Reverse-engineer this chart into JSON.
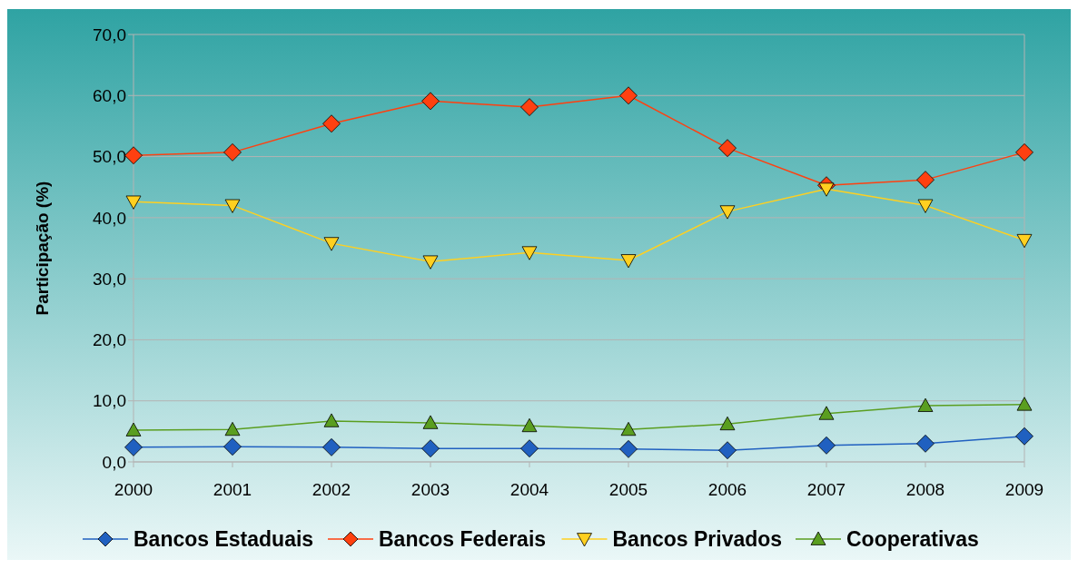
{
  "chart_data": {
    "type": "line",
    "ylabel": "Participação (%)",
    "categories": [
      "2000",
      "2001",
      "2002",
      "2003",
      "2004",
      "2005",
      "2006",
      "2007",
      "2008",
      "2009"
    ],
    "ylim": [
      0,
      70
    ],
    "yticks": [
      {
        "value": 0,
        "label": "0,0"
      },
      {
        "value": 10,
        "label": "10,0"
      },
      {
        "value": 20,
        "label": "20,0"
      },
      {
        "value": 30,
        "label": "30,0"
      },
      {
        "value": 40,
        "label": "40,0"
      },
      {
        "value": 50,
        "label": "50,0"
      },
      {
        "value": 60,
        "label": "60,0"
      },
      {
        "value": 70,
        "label": "70,0"
      }
    ],
    "grid": "y",
    "legend": "bottom",
    "series": [
      {
        "name": "Bancos Estaduais",
        "color": "#2060c0",
        "marker": "diamond",
        "values": [
          2.4,
          2.5,
          2.4,
          2.2,
          2.2,
          2.1,
          1.9,
          2.7,
          3.0,
          4.2
        ]
      },
      {
        "name": "Bancos Federais",
        "color": "#ff4010",
        "marker": "diamond",
        "values": [
          50.2,
          50.7,
          55.4,
          59.1,
          58.1,
          60.0,
          51.4,
          45.3,
          46.2,
          50.7
        ]
      },
      {
        "name": "Bancos Privados",
        "color": "#ffd020",
        "marker": "triangle-down",
        "values": [
          42.6,
          42.0,
          35.8,
          32.8,
          34.3,
          33.0,
          41.0,
          44.7,
          42.0,
          36.3
        ]
      },
      {
        "name": "Cooperativas",
        "color": "#5a9e20",
        "marker": "triangle",
        "values": [
          5.2,
          5.3,
          6.7,
          6.4,
          5.9,
          5.3,
          6.2,
          7.9,
          9.2,
          9.4
        ]
      }
    ]
  }
}
